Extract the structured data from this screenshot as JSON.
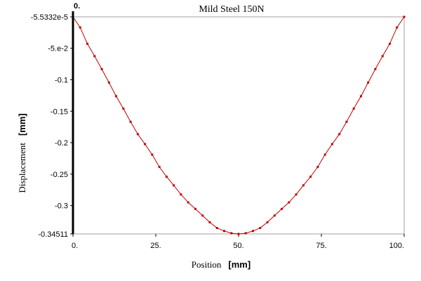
{
  "chart_data": {
    "type": "line",
    "title": "Mild Steel 150N",
    "xlabel": "Position",
    "xlabel_unit": "[mm]",
    "ylabel": "Displacement",
    "ylabel_unit": "[mm]",
    "xlim": [
      0,
      100
    ],
    "ylim": [
      -0.34511,
      -5.5332e-05
    ],
    "x_ticks": [
      {
        "value": 0,
        "label": "0."
      },
      {
        "value": 25,
        "label": "25."
      },
      {
        "value": 50,
        "label": "50."
      },
      {
        "value": 75,
        "label": "75."
      },
      {
        "value": 100,
        "label": "100."
      }
    ],
    "y_ticks": [
      {
        "value": -5.5332e-05,
        "label": "-5.5332e-5"
      },
      {
        "value": -0.05,
        "label": "-5.e-2"
      },
      {
        "value": -0.1,
        "label": "-0.1"
      },
      {
        "value": -0.15,
        "label": "-0.15"
      },
      {
        "value": -0.2,
        "label": "-0.2"
      },
      {
        "value": -0.25,
        "label": "-0.25"
      },
      {
        "value": -0.3,
        "label": "-0.3"
      },
      {
        "value": -0.34511,
        "label": "-0.34511"
      }
    ],
    "marker_line": {
      "x": 0,
      "label": "0."
    },
    "grid": false,
    "series": [
      {
        "color": "#c00000",
        "x": [
          0,
          2.17,
          4.35,
          6.52,
          8.7,
          10.87,
          13.04,
          15.22,
          17.39,
          19.57,
          21.74,
          23.91,
          26.09,
          28.26,
          30.43,
          32.61,
          34.78,
          36.96,
          39.13,
          41.3,
          43.48,
          45.65,
          47.83,
          50,
          52.17,
          54.35,
          56.52,
          58.7,
          60.87,
          63.04,
          65.22,
          67.39,
          69.57,
          71.74,
          73.91,
          76.09,
          78.26,
          80.43,
          82.61,
          84.78,
          86.96,
          89.13,
          91.3,
          93.48,
          95.65,
          97.83,
          100
        ],
        "y": [
          -6e-05,
          -0.0169,
          -0.0428,
          -0.0625,
          -0.0831,
          -0.1045,
          -0.1262,
          -0.1459,
          -0.1668,
          -0.1865,
          -0.2023,
          -0.2191,
          -0.2386,
          -0.2541,
          -0.2679,
          -0.2824,
          -0.2949,
          -0.3053,
          -0.3159,
          -0.3266,
          -0.3357,
          -0.3404,
          -0.344,
          -0.34511,
          -0.344,
          -0.3404,
          -0.3357,
          -0.3266,
          -0.3159,
          -0.3053,
          -0.2949,
          -0.2824,
          -0.2679,
          -0.2541,
          -0.2386,
          -0.2191,
          -0.2023,
          -0.1865,
          -0.1668,
          -0.1459,
          -0.1262,
          -0.1045,
          -0.0831,
          -0.0625,
          -0.0428,
          -0.0169,
          -6e-05
        ]
      }
    ]
  }
}
